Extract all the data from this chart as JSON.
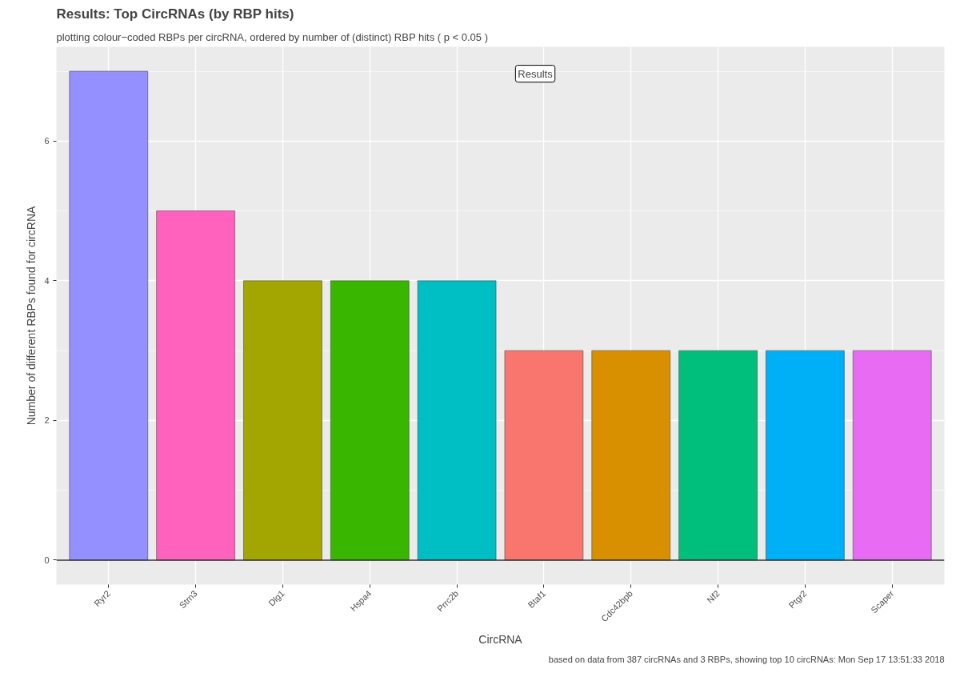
{
  "chart_data": {
    "type": "bar",
    "title": "Results: Top CircRNAs (by RBP hits)",
    "subtitle": "plotting colour−coded RBPs per circRNA, ordered by number of (distinct) RBP hits ( p < 0.05 )",
    "xlabel": "CircRNA",
    "ylabel": "Number of different RBPs found for circRNA",
    "categories": [
      "Ryr2",
      "Strn3",
      "Dlg1",
      "Hspa4",
      "Prrc2b",
      "Btaf1",
      "Cdc42bpb",
      "Nf2",
      "Ptgr2",
      "Scaper"
    ],
    "values": [
      7,
      5,
      4,
      4,
      4,
      3,
      3,
      3,
      3,
      3
    ],
    "colors": [
      "#9590ff",
      "#ff62bc",
      "#a3a500",
      "#39b600",
      "#00bfc4",
      "#f8766d",
      "#d89000",
      "#00bf7d",
      "#00b0f6",
      "#e76bf3"
    ],
    "ylim": [
      -0.35,
      7.35
    ],
    "yticks": [
      0,
      2,
      4,
      6
    ],
    "grid": true,
    "ref_lines": [
      {
        "axis": "y",
        "value": 0,
        "color": "#333333"
      }
    ],
    "annotations": [
      "Results",
      "based on data from 387 circRNAs and 3 RBPs, showing top 10 circRNAs: Mon Sep 17 13:51:33 2018"
    ]
  }
}
